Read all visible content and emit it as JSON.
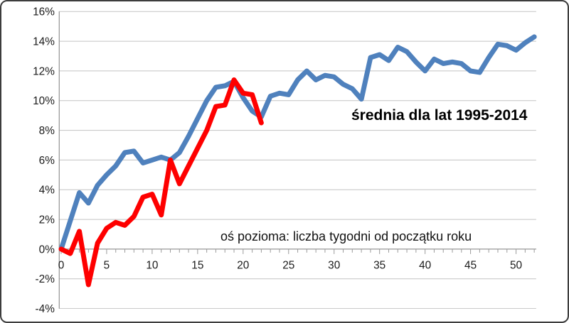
{
  "chart_data": {
    "type": "line",
    "annotation": "średnia dla lat 1995-2014",
    "x_label_note": "oś pozioma: liczba tygodni od początku roku",
    "xlabel": "",
    "ylabel": "",
    "grid": true,
    "ylim": [
      -4,
      16
    ],
    "xlim": [
      0,
      52.3
    ],
    "y_ticks": [
      {
        "value": 16,
        "label": "16%"
      },
      {
        "value": 14,
        "label": "14%"
      },
      {
        "value": 12,
        "label": "12%"
      },
      {
        "value": 10,
        "label": "10%"
      },
      {
        "value": 8,
        "label": "8%"
      },
      {
        "value": 6,
        "label": "6%"
      },
      {
        "value": 4,
        "label": "4%"
      },
      {
        "value": 2,
        "label": "2%"
      },
      {
        "value": 0,
        "label": "0%"
      },
      {
        "value": -2,
        "label": "-2%"
      },
      {
        "value": -4,
        "label": "-4%"
      }
    ],
    "x_ticks": [
      {
        "value": 0,
        "label": "0"
      },
      {
        "value": 5,
        "label": "5"
      },
      {
        "value": 10,
        "label": "10"
      },
      {
        "value": 15,
        "label": "15"
      },
      {
        "value": 20,
        "label": "20"
      },
      {
        "value": 25,
        "label": "25"
      },
      {
        "value": 30,
        "label": "30"
      },
      {
        "value": 35,
        "label": "35"
      },
      {
        "value": 40,
        "label": "40"
      },
      {
        "value": 45,
        "label": "45"
      },
      {
        "value": 50,
        "label": "50"
      }
    ],
    "minor_tick_weeks": 52,
    "series": [
      {
        "id": "series-blue",
        "label": "średnia dla lat 1995-2014",
        "color": "#4F81BD",
        "stroke_width": 7,
        "x_start": 0,
        "values": [
          0.0,
          1.9,
          3.8,
          3.1,
          4.3,
          5.0,
          5.6,
          6.5,
          6.6,
          5.8,
          6.0,
          6.2,
          6.0,
          6.5,
          7.6,
          8.8,
          10.0,
          10.9,
          11.0,
          11.3,
          10.2,
          9.3,
          8.9,
          10.3,
          10.5,
          10.4,
          11.4,
          12.0,
          11.4,
          11.7,
          11.6,
          11.1,
          10.8,
          10.1,
          12.9,
          13.1,
          12.7,
          13.6,
          13.3,
          12.6,
          12.0,
          12.8,
          12.5,
          12.6,
          12.5,
          12.0,
          11.9,
          12.9,
          13.8,
          13.7,
          13.4,
          13.9,
          14.3
        ]
      },
      {
        "id": "series-red",
        "label": "",
        "color": "#FE0000",
        "stroke_width": 7,
        "x_start": 0,
        "values": [
          0.0,
          -0.3,
          1.2,
          -2.4,
          0.4,
          1.4,
          1.8,
          1.6,
          2.2,
          3.5,
          3.7,
          2.3,
          6.0,
          4.4,
          5.6,
          6.8,
          8.0,
          9.6,
          9.7,
          11.4,
          10.5,
          10.4,
          8.5
        ]
      }
    ],
    "colors": {
      "gridline": "#c3c3c3",
      "axis": "#999999",
      "tick": "#999999",
      "tick_text": "#1a1a1a"
    }
  }
}
